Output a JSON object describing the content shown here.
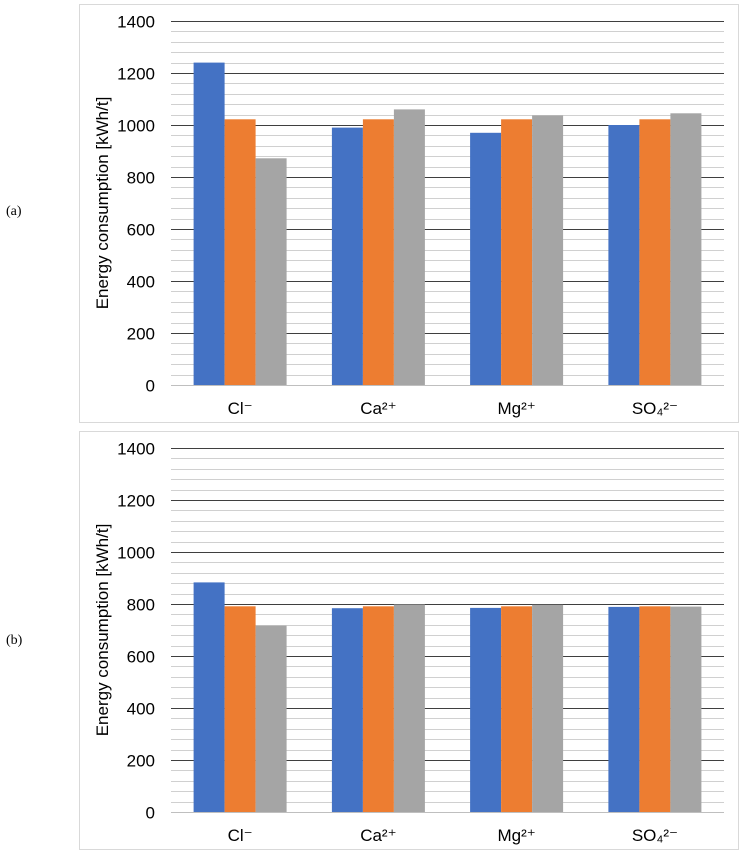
{
  "panels": {
    "a_label": "(a)",
    "b_label": "(b)"
  },
  "chart_data": [
    {
      "type": "bar",
      "categories": [
        "Cl⁻",
        "Ca²⁺",
        "Mg²⁺",
        "SO₄²⁻"
      ],
      "series": [
        {
          "values": [
            1240,
            990,
            970,
            1000
          ],
          "color": "#4472c4"
        },
        {
          "values": [
            1022,
            1022,
            1022,
            1022
          ],
          "color": "#ed7d31"
        },
        {
          "values": [
            872,
            1060,
            1037,
            1045
          ],
          "color": "#a5a5a5"
        }
      ],
      "ylabel": "Energy consumption [kWh/t]",
      "ylim": [
        0,
        1400
      ],
      "yticks": [
        0,
        200,
        400,
        600,
        800,
        1000,
        1200,
        1400
      ],
      "minor_step": 40,
      "grid": true
    },
    {
      "type": "bar",
      "categories": [
        "Cl⁻",
        "Ca²⁺",
        "Mg²⁺",
        "SO₄²⁻"
      ],
      "series": [
        {
          "values": [
            883,
            784,
            785,
            789
          ],
          "color": "#4472c4"
        },
        {
          "values": [
            791,
            791,
            791,
            791
          ],
          "color": "#ed7d31"
        },
        {
          "values": [
            717,
            798,
            797,
            790
          ],
          "color": "#a5a5a5"
        }
      ],
      "ylabel": "Energy consumption [kWh/t]",
      "ylim": [
        0,
        1400
      ],
      "yticks": [
        0,
        200,
        400,
        600,
        800,
        1000,
        1200,
        1400
      ],
      "minor_step": 40,
      "grid": true
    }
  ]
}
